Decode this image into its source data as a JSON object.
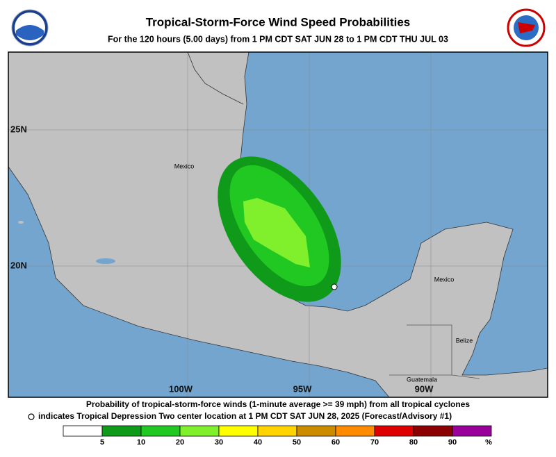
{
  "header": {
    "title": "Tropical-Storm-Force Wind Speed Probabilities",
    "subtitle": "For the 120 hours (5.00 days) from 1 PM CDT SAT JUN 28 to 1 PM CDT THU JUL 03"
  },
  "map": {
    "lat_labels": [
      "25N",
      "20N"
    ],
    "lon_labels": [
      "100W",
      "95W",
      "90W"
    ],
    "place_labels": [
      "Mexico",
      "Mexico",
      "Belize",
      "Guatemala"
    ]
  },
  "footer": {
    "line1": "Probability of tropical-storm-force winds (1-minute average >= 39 mph) from all tropical cyclones",
    "line2": "indicates Tropical Depression Two center location at 1 PM CDT SAT JUN 28, 2025 (Forecast/Advisory #1)"
  },
  "legend": {
    "colors": [
      "#ffffff",
      "#0f9a1a",
      "#22c822",
      "#80f02c",
      "#ffff00",
      "#ffd400",
      "#cc8c00",
      "#ff8c00",
      "#dd0000",
      "#8b0000",
      "#9a009a"
    ],
    "ticks": [
      5,
      10,
      20,
      30,
      40,
      50,
      60,
      70,
      80,
      90
    ],
    "unit": "%"
  }
}
